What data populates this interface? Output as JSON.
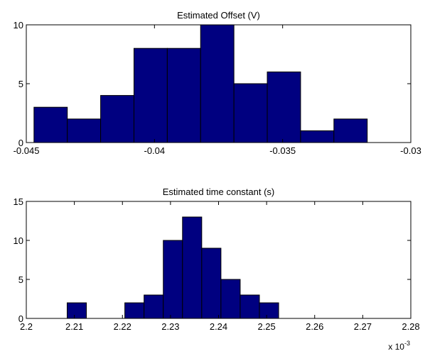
{
  "chart_data": [
    {
      "type": "bar",
      "title": "Estimated Offset (V)",
      "xlabel": "",
      "ylabel": "",
      "xlim": [
        -0.045,
        -0.03
      ],
      "ylim": [
        0,
        10
      ],
      "xticks": [
        "-0.045",
        "-0.04",
        "-0.035",
        "-0.03"
      ],
      "yticks": [
        "0",
        "5",
        "10"
      ],
      "bin_edges": [
        -0.0447,
        -0.0434,
        -0.0421,
        -0.0408,
        -0.0395,
        -0.0382,
        -0.0369,
        -0.0356,
        -0.0343,
        -0.033,
        -0.0317
      ],
      "counts": [
        3,
        2,
        4,
        8,
        8,
        10,
        5,
        6,
        1,
        2
      ],
      "grid": false,
      "color": "#000080"
    },
    {
      "type": "bar",
      "title": "Estimated time constant (s)",
      "xlabel": "",
      "ylabel": "",
      "xlim": [
        2.2,
        2.28
      ],
      "ylim": [
        0,
        15
      ],
      "xticks": [
        "2.2",
        "2.21",
        "2.22",
        "2.23",
        "2.24",
        "2.25",
        "2.26",
        "2.27",
        "2.28"
      ],
      "yticks": [
        "0",
        "5",
        "10",
        "15"
      ],
      "x_multiplier": "x 10",
      "x_multiplier_exp": "-3",
      "bin_edges": [
        2.2045,
        2.2085,
        2.2125,
        2.2165,
        2.2205,
        2.2245,
        2.2285,
        2.2325,
        2.2365,
        2.2405,
        2.2445,
        2.2485,
        2.2525,
        2.2565,
        2.2605,
        2.2645
      ],
      "counts": [
        0,
        2,
        0,
        0,
        2,
        3,
        10,
        13,
        9,
        5,
        3,
        2,
        0,
        0,
        0
      ],
      "grid": false,
      "color": "#000080"
    }
  ]
}
